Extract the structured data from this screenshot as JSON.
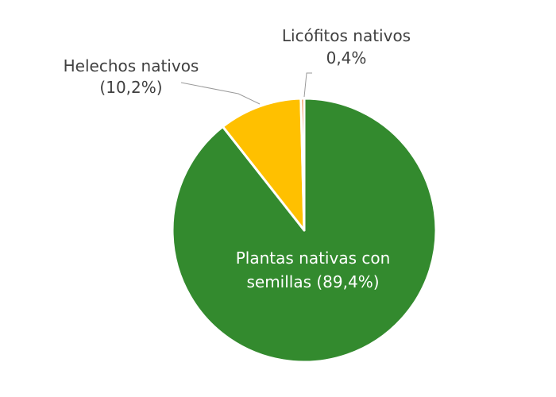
{
  "chart_data": {
    "type": "pie",
    "start_angle_deg": 0,
    "direction": "clockwise",
    "slices": [
      {
        "name": "Plantas nativas con semillas",
        "value": 89.4,
        "color": "#338a2e",
        "label_lines": [
          "Plantas nativas con",
          "semillas (89,4%)"
        ],
        "label_position": "inside"
      },
      {
        "name": "Helechos nativos",
        "value": 10.2,
        "color": "#ffc000",
        "label_lines": [
          "Helechos nativos",
          "(10,2%)"
        ],
        "label_position": "outside-left"
      },
      {
        "name": "Licófitos nativos",
        "value": 0.4,
        "color": "#ed7d31",
        "label_lines": [
          "Licófitos nativos",
          "0,4%"
        ],
        "label_position": "outside-top"
      }
    ]
  }
}
